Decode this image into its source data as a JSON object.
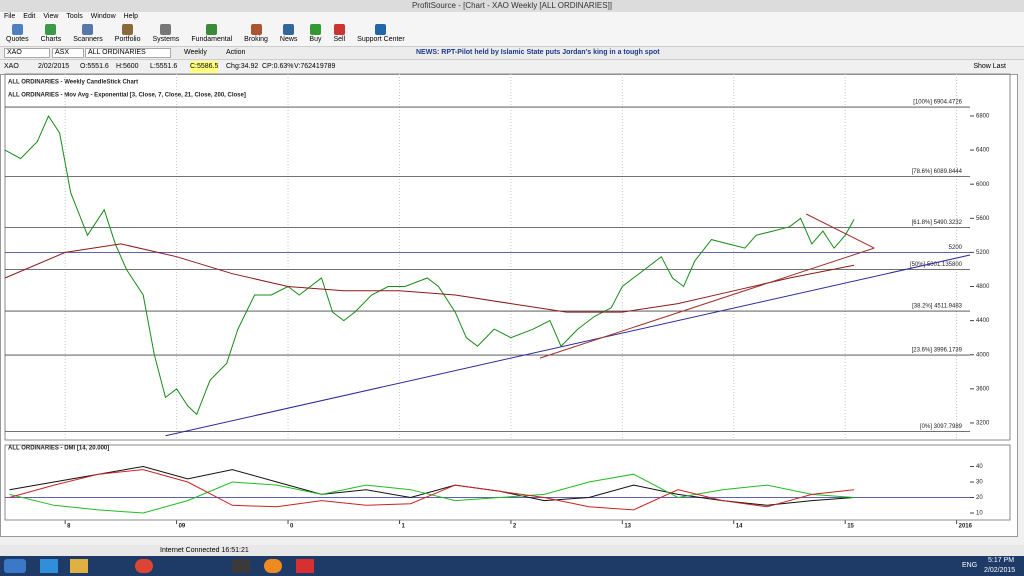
{
  "window": {
    "title": "ProfitSource - [Chart - XAO Weekly [ALL ORDINARIES]]"
  },
  "menu": [
    "File",
    "Edit",
    "View",
    "Tools",
    "Window",
    "Help"
  ],
  "toolbar": [
    "Quotes",
    "Charts",
    "Scanners",
    "Portfolio",
    "Systems",
    "Fundamental",
    "Broking",
    "News",
    "Buy",
    "Sell",
    "Support Center"
  ],
  "symbol_bar": {
    "code": "XAO",
    "exchange": "ASX",
    "name": "ALL ORDINARIES",
    "period": "Weekly",
    "action": "Action",
    "news": "NEWS: RPT-Pilot held by Islamic State puts Jordan's king in a tough spot"
  },
  "info_bar": [
    "XAO",
    "2/02/2015",
    "O:5551.6",
    "H:5600",
    "L:5551.6",
    "C:5586.5",
    "Chg:34.92",
    "CP:0.63%",
    "V:762419789"
  ],
  "show_last": "Show Last",
  "status": "Internet Connected 16:51:21",
  "taskbar": {
    "time": "5:17 PM",
    "date": "2/02/2015",
    "lang": "ENG"
  },
  "chart_data": [
    {
      "type": "line",
      "title": "ALL ORDINARIES - Weekly CandleStick Chart",
      "subtitle": "ALL ORDINARIES - Mov Avg - Exponential [3, Close, 7, Close, 21, Close, 200, Close]",
      "xlim": [
        2007.46,
        2016.12
      ],
      "ylim": [
        3000,
        7128
      ],
      "yticks": [
        3200,
        3600,
        4000,
        4400,
        4800,
        5200,
        5600,
        6000,
        6400,
        6800
      ],
      "xticks": [
        {
          "value": 2008,
          "label": "8"
        },
        {
          "value": 2009,
          "label": "09"
        },
        {
          "value": 2010,
          "label": "0"
        },
        {
          "value": 2011,
          "label": "1"
        },
        {
          "value": 2012,
          "label": "2"
        },
        {
          "value": 2013,
          "label": "13"
        },
        {
          "value": 2014,
          "label": "14"
        },
        {
          "value": 2015,
          "label": "15"
        },
        {
          "value": 2016,
          "label": "2016"
        }
      ],
      "grid": true,
      "levels": [
        {
          "value": 6904.4726,
          "label": "[100%] 6904.4726",
          "color": "#444444"
        },
        {
          "value": 6089.8444,
          "label": "[78.6%] 6089.8444",
          "color": "#444444"
        },
        {
          "value": 5490.3232,
          "label": "[61.8%] 5490.3232",
          "color": "#444444"
        },
        {
          "value": 5200,
          "label": "5200",
          "color": "#2b2b9c"
        },
        {
          "value": 5001.1358,
          "label": "[50%] 5001.135800",
          "color": "#444444"
        },
        {
          "value": 4511.9483,
          "label": "[38.2%] 4511.9483",
          "color": "#444444"
        },
        {
          "value": 3996.1739,
          "label": "[23.6%] 3996.1739",
          "color": "#444444"
        },
        {
          "value": 3097.7989,
          "label": "[0%] 3097.7989",
          "color": "#444444"
        }
      ],
      "series": [
        {
          "color": "#1a8a1a",
          "x": [
            2007.46,
            2007.6,
            2007.75,
            2007.85,
            2007.95,
            2008.05,
            2008.2,
            2008.35,
            2008.45,
            2008.55,
            2008.7,
            2008.8,
            2008.9,
            2009.0,
            2009.1,
            2009.18,
            2009.3,
            2009.45,
            2009.55,
            2009.7,
            2009.85,
            2010.0,
            2010.1,
            2010.3,
            2010.4,
            2010.5,
            2010.6,
            2010.75,
            2010.9,
            2011.05,
            2011.25,
            2011.35,
            2011.5,
            2011.6,
            2011.7,
            2011.85,
            2012.0,
            2012.2,
            2012.35,
            2012.45,
            2012.6,
            2012.75,
            2012.9,
            2013.0,
            2013.2,
            2013.35,
            2013.45,
            2013.55,
            2013.65,
            2013.8,
            2013.95,
            2014.1,
            2014.2,
            2014.35,
            2014.5,
            2014.6,
            2014.7,
            2014.8,
            2014.9,
            2015.0,
            2015.08
          ],
          "values": [
            6400,
            6300,
            6500,
            6800,
            6600,
            5900,
            5400,
            5700,
            5300,
            5000,
            4700,
            4000,
            3500,
            3600,
            3400,
            3300,
            3700,
            3900,
            4300,
            4700,
            4700,
            4800,
            4700,
            4900,
            4500,
            4400,
            4500,
            4700,
            4800,
            4800,
            4900,
            4800,
            4500,
            4200,
            4100,
            4300,
            4200,
            4300,
            4400,
            4100,
            4300,
            4450,
            4550,
            4800,
            5000,
            5150,
            4900,
            4800,
            5100,
            5350,
            5300,
            5250,
            5400,
            5450,
            5500,
            5600,
            5300,
            5450,
            5250,
            5400,
            5586.5
          ]
        },
        {
          "color": "#8b1a1a",
          "x": [
            2007.46,
            2008.0,
            2008.5,
            2009.0,
            2009.5,
            2010.0,
            2010.5,
            2011.0,
            2011.5,
            2012.0,
            2012.5,
            2013.0,
            2013.5,
            2014.0,
            2014.5,
            2015.08
          ],
          "values": [
            4900,
            5200,
            5300,
            5150,
            4950,
            4800,
            4750,
            4750,
            4700,
            4600,
            4500,
            4500,
            4600,
            4750,
            4900,
            5050
          ]
        },
        {
          "color": "#2b2b9c",
          "x": [
            2008.9,
            2016.12
          ],
          "values": [
            3050,
            5170
          ]
        },
        {
          "color": "#a0302a",
          "x": [
            2012.26,
            2015.26
          ],
          "values": [
            3960,
            5250
          ]
        },
        {
          "color": "#a0302a",
          "x": [
            2014.65,
            2015.26
          ],
          "values": [
            5650,
            5250
          ]
        }
      ]
    },
    {
      "type": "line",
      "title": "ALL ORDINARIES - DMI [14, 20.000]",
      "xlim": [
        2007.46,
        2016.12
      ],
      "ylim": [
        5.5,
        47.4
      ],
      "yticks": [
        10,
        20,
        30,
        40
      ],
      "levels": [
        {
          "value": 20,
          "color": "#2b2b9c"
        }
      ],
      "series": [
        {
          "color": "#111111",
          "x": [
            2007.5,
            2007.9,
            2008.3,
            2008.7,
            2009.1,
            2009.5,
            2009.9,
            2010.3,
            2010.7,
            2011.1,
            2011.5,
            2011.9,
            2012.3,
            2012.7,
            2013.1,
            2013.5,
            2013.9,
            2014.3,
            2014.7,
            2015.08
          ],
          "values": [
            25,
            30,
            35,
            40,
            32,
            38,
            30,
            22,
            25,
            20,
            28,
            24,
            18,
            20,
            28,
            22,
            18,
            15,
            18,
            20
          ]
        },
        {
          "color": "#22bb22",
          "x": [
            2007.5,
            2007.9,
            2008.3,
            2008.7,
            2009.1,
            2009.5,
            2009.9,
            2010.3,
            2010.7,
            2011.1,
            2011.5,
            2011.9,
            2012.3,
            2012.7,
            2013.1,
            2013.5,
            2013.9,
            2014.3,
            2014.7,
            2015.08
          ],
          "values": [
            22,
            15,
            12,
            10,
            18,
            30,
            28,
            22,
            28,
            25,
            18,
            20,
            22,
            30,
            35,
            20,
            25,
            28,
            22,
            20
          ]
        },
        {
          "color": "#cc2222",
          "x": [
            2007.5,
            2007.9,
            2008.3,
            2008.7,
            2009.1,
            2009.5,
            2009.9,
            2010.3,
            2010.7,
            2011.1,
            2011.5,
            2011.9,
            2012.3,
            2012.7,
            2013.1,
            2013.5,
            2013.9,
            2014.3,
            2014.7,
            2015.08
          ],
          "values": [
            20,
            28,
            35,
            38,
            30,
            15,
            14,
            18,
            15,
            16,
            28,
            24,
            20,
            14,
            12,
            25,
            18,
            14,
            22,
            25
          ]
        }
      ]
    }
  ]
}
